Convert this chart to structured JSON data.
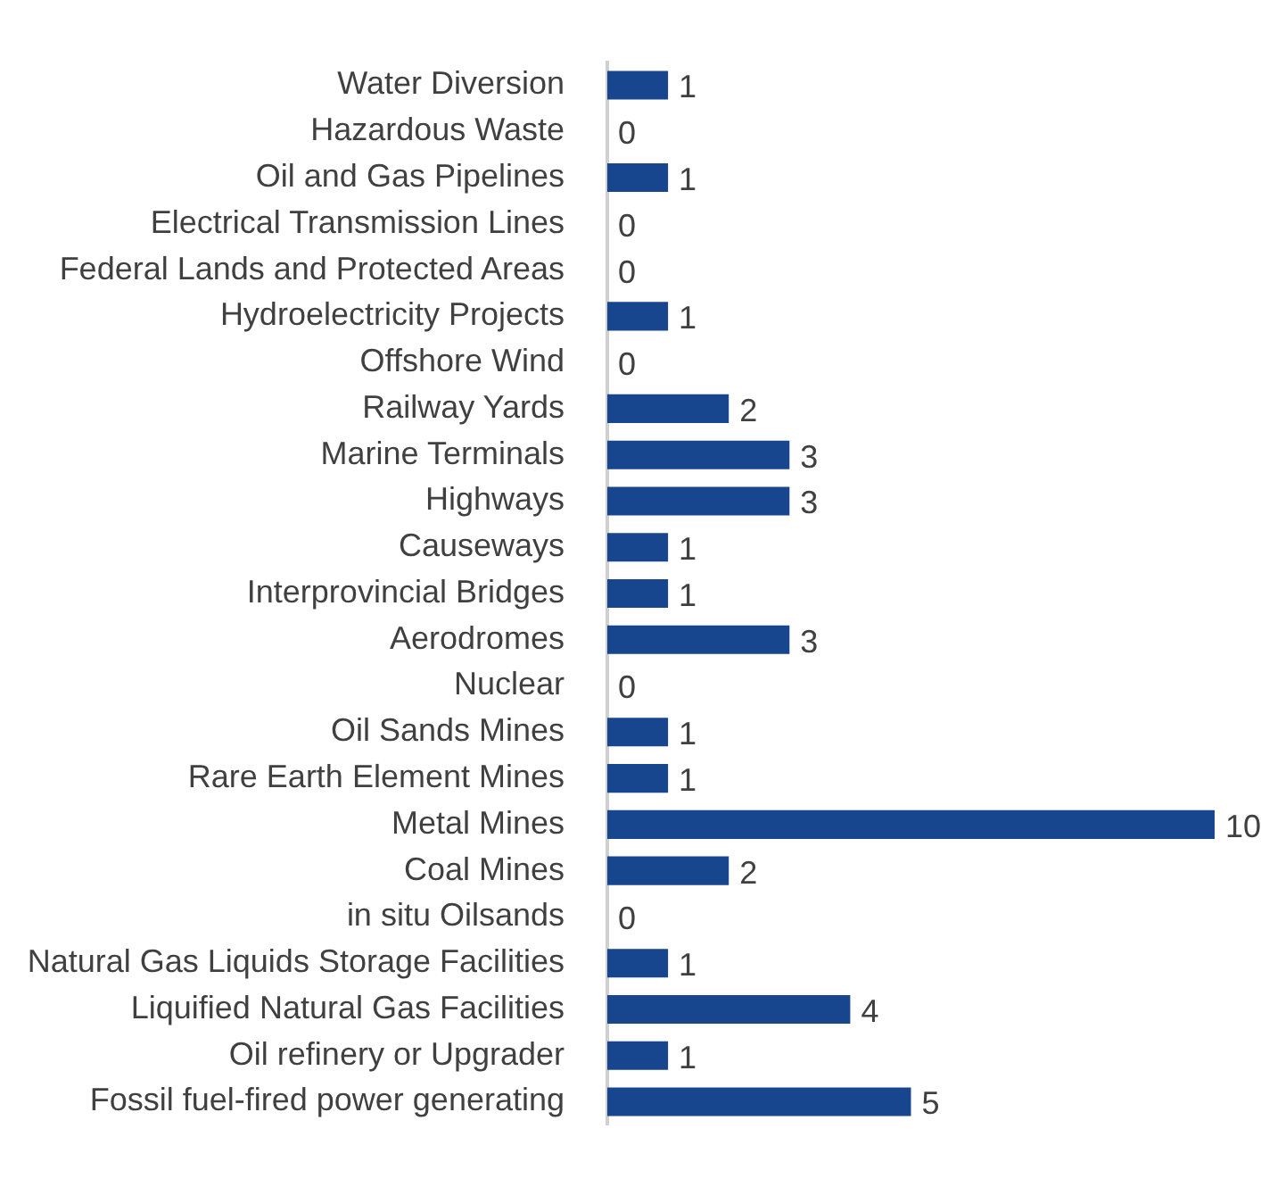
{
  "chart_data": {
    "type": "bar",
    "orientation": "horizontal",
    "data_labels": true,
    "legend": false,
    "xlim": [
      0,
      10
    ],
    "tick_labels": "y",
    "categories": [
      "Water Diversion",
      "Hazardous Waste",
      "Oil and Gas Pipelines",
      "Electrical Transmission Lines",
      "Federal Lands and Protected Areas",
      "Hydroelectricity Projects",
      "Offshore Wind",
      "Railway Yards",
      "Marine Terminals",
      "Highways",
      "Causeways",
      "Interprovincial Bridges",
      "Aerodromes",
      "Nuclear",
      "Oil Sands Mines",
      "Rare Earth Element Mines",
      "Metal Mines",
      "Coal Mines",
      "in situ Oilsands",
      "Natural Gas Liquids Storage Facilities",
      "Liquified Natural Gas Facilities",
      "Oil refinery or Upgrader",
      "Fossil fuel-fired power generating"
    ],
    "values": [
      1,
      0,
      1,
      0,
      0,
      1,
      0,
      2,
      3,
      3,
      1,
      1,
      3,
      0,
      1,
      1,
      10,
      2,
      0,
      1,
      4,
      1,
      5
    ],
    "color": "#17468f"
  }
}
